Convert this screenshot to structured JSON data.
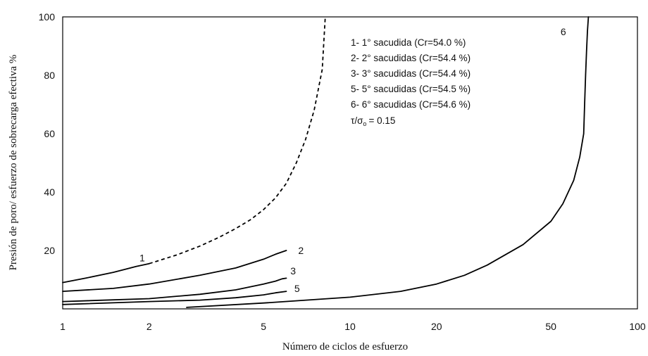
{
  "chart_data": {
    "type": "line",
    "xlabel": "Número de ciclos de esfuerzo",
    "ylabel": "Presión de poro/ esfuerzo de sobrecarga efectiva %",
    "x_scale": "log",
    "xlim": [
      1,
      100
    ],
    "ylim": [
      0,
      100
    ],
    "x_ticks": [
      1,
      2,
      5,
      10,
      20,
      50,
      100
    ],
    "x_tick_labels": [
      "1",
      "2",
      "5",
      "10",
      "20",
      "50",
      "100"
    ],
    "y_ticks": [
      20,
      40,
      60,
      80,
      100
    ],
    "y_tick_labels": [
      "20",
      "40",
      "60",
      "80",
      "100"
    ],
    "grid": false,
    "legend_position": "top-center",
    "legend": [
      "1- 1° sacudida (Cr=54.0 %)",
      "2- 2° sacudidas (Cr=54.4 %)",
      "3- 3° sacudidas (Cr=54.4 %)",
      "5- 5° sacudidas (Cr=54.5 %)",
      "6- 6° sacudidas (Cr=54.6 %)"
    ],
    "ratio_label": "τ/σ",
    "ratio_subscript": "o",
    "ratio_value": "= 0.15",
    "series": [
      {
        "name": "1",
        "label": "1",
        "color": "#000000",
        "solid": {
          "x": [
            1.0,
            1.2,
            1.5,
            1.8,
            2.0
          ],
          "y": [
            9,
            10.5,
            12.5,
            14.5,
            15.5
          ]
        },
        "dashed": {
          "x": [
            2.0,
            2.5,
            3.0,
            3.5,
            4.0,
            4.5,
            5.0,
            5.5,
            6.0,
            6.5,
            7.0,
            7.5,
            8.0,
            8.2
          ],
          "y": [
            15.5,
            18.5,
            21.5,
            24.5,
            27.5,
            30.5,
            34,
            38,
            43,
            50,
            58,
            68,
            82,
            100
          ]
        },
        "label_x": 1.85,
        "label_y": 17.5
      },
      {
        "name": "2",
        "label": "2",
        "color": "#000000",
        "solid": {
          "x": [
            1.0,
            1.5,
            2.0,
            3.0,
            4.0,
            5.0,
            5.5,
            6.0
          ],
          "y": [
            6,
            7,
            8.5,
            11.5,
            14,
            17,
            18.7,
            20
          ]
        },
        "label_x": 6.6,
        "label_y": 20
      },
      {
        "name": "3",
        "label": "3",
        "color": "#000000",
        "solid": {
          "x": [
            1.0,
            2.0,
            3.0,
            4.0,
            5.0,
            5.5,
            5.8,
            6.0
          ],
          "y": [
            2.5,
            3.5,
            5,
            6.5,
            8.5,
            9.5,
            10.3,
            10.5
          ]
        },
        "label_x": 6.2,
        "label_y": 13
      },
      {
        "name": "5",
        "label": "5",
        "color": "#000000",
        "solid": {
          "x": [
            1.0,
            2.0,
            3.0,
            4.0,
            5.0,
            5.5,
            6.0
          ],
          "y": [
            1.5,
            2.5,
            3,
            3.8,
            4.8,
            5.5,
            6.0
          ]
        },
        "label_x": 6.4,
        "label_y": 7
      },
      {
        "name": "6",
        "label": "6",
        "color": "#000000",
        "solid": {
          "x": [
            2.7,
            5.0,
            10.0,
            15.0,
            20.0,
            25.0,
            30.0,
            40.0,
            50.0,
            55.0,
            60.0,
            63.0,
            65.0,
            65.5,
            66.0,
            66.5,
            67.0,
            67.5
          ],
          "y": [
            0.5,
            2,
            4,
            6,
            8.5,
            11.5,
            15,
            22,
            30,
            36,
            44,
            52,
            60,
            70,
            80,
            88,
            95,
            100
          ]
        },
        "label_x": 54,
        "label_y": 95
      }
    ]
  }
}
